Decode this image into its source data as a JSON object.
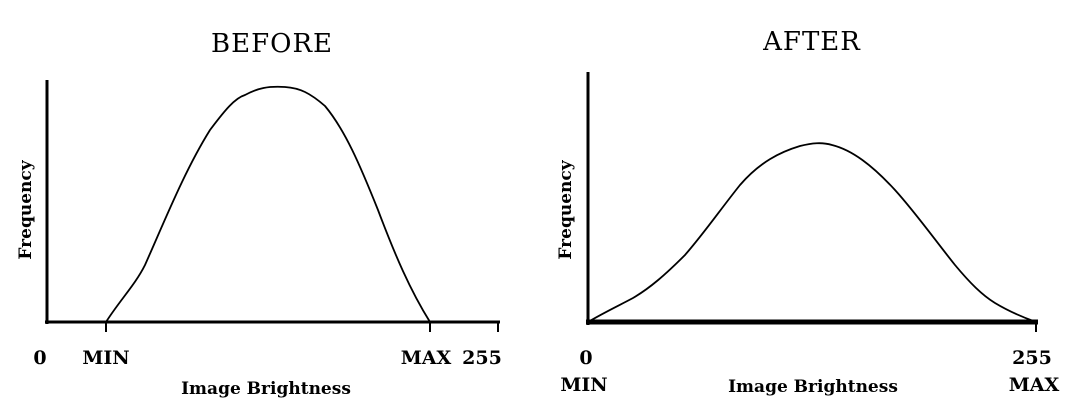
{
  "panels": [
    {
      "title": "BEFORE",
      "xlabel": "Image Brightness",
      "ylabel": "Frequency",
      "tick_0": "0",
      "tick_min": "MIN",
      "tick_max": "MAX",
      "tick_255": "255"
    },
    {
      "title": "AFTER",
      "xlabel": "Image Brightness",
      "ylabel": "Frequency",
      "tick_0": "0",
      "tick_min": "MIN",
      "tick_max": "MAX",
      "tick_255": "255"
    }
  ]
}
